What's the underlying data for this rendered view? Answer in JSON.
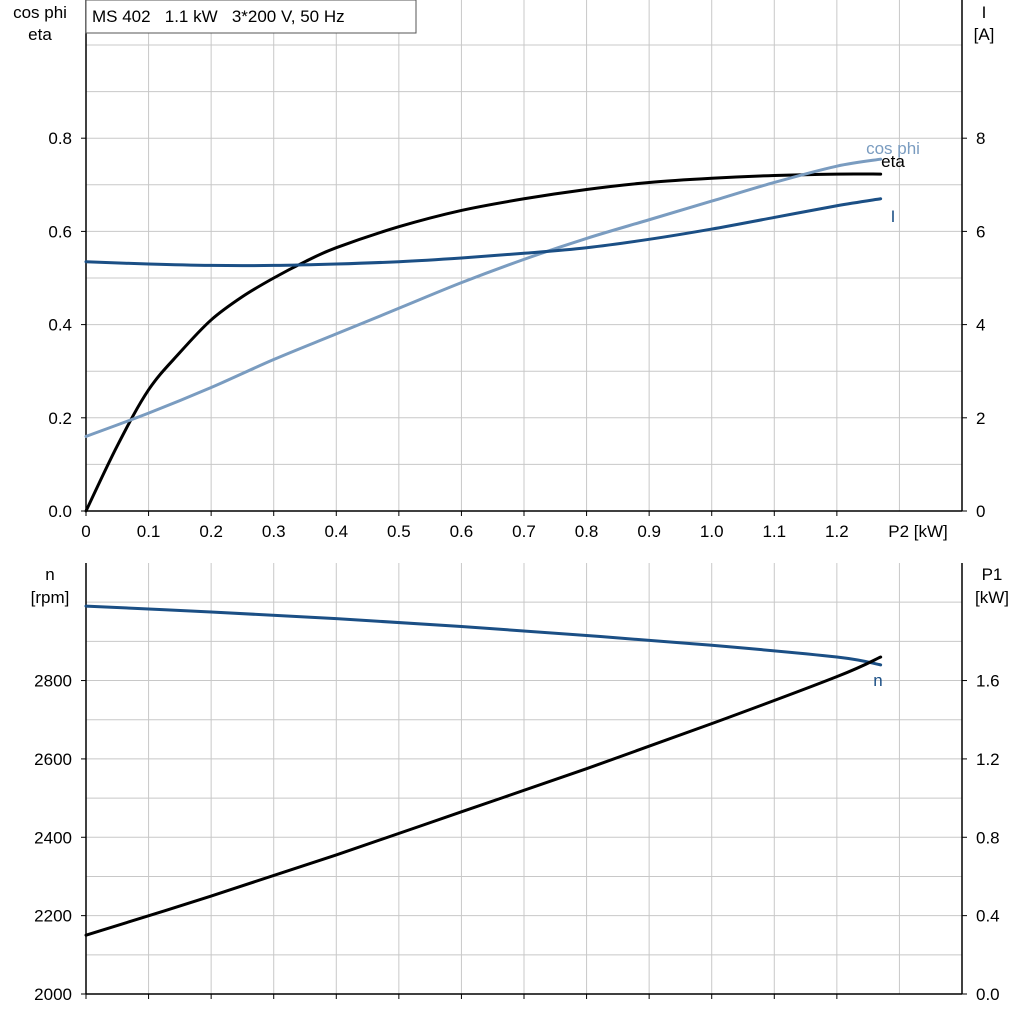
{
  "title": "MS 402   1.1 kW   3*200 V, 50 Hz",
  "colors": {
    "black": "#000000",
    "dark_blue": "#1b4f85",
    "light_blue": "#7a9cc0",
    "grid": "#c8c8c8"
  },
  "chart_data": [
    {
      "type": "line",
      "x_ticks": [
        "0",
        "0.1",
        "0.2",
        "0.3",
        "0.4",
        "0.5",
        "0.6",
        "0.7",
        "0.8",
        "0.9",
        "1.0",
        "1.1",
        "1.2"
      ],
      "xlabel": "P2 [kW]",
      "xlim": [
        0,
        1.4
      ],
      "left_axis": {
        "label_line1": "cos phi",
        "label_line2": "eta",
        "ylim": [
          0,
          1.0
        ],
        "ticks": [
          "0.0",
          "0.2",
          "0.4",
          "0.6",
          "0.8"
        ]
      },
      "right_axis": {
        "label_line1": "I",
        "label_line2": "[A]",
        "ylim": [
          0,
          10
        ],
        "ticks": [
          "0",
          "2",
          "4",
          "6",
          "8"
        ]
      },
      "grid": true,
      "series": [
        {
          "name": "eta",
          "axis": "left",
          "color": "#000000",
          "x": [
            0,
            0.05,
            0.1,
            0.15,
            0.2,
            0.25,
            0.3,
            0.35,
            0.4,
            0.5,
            0.6,
            0.7,
            0.8,
            0.9,
            1.0,
            1.1,
            1.2,
            1.27
          ],
          "y": [
            0.0,
            0.14,
            0.26,
            0.34,
            0.41,
            0.46,
            0.5,
            0.535,
            0.565,
            0.61,
            0.645,
            0.67,
            0.69,
            0.705,
            0.714,
            0.72,
            0.723,
            0.723
          ]
        },
        {
          "name": "cos phi",
          "axis": "left",
          "color": "#7a9cc0",
          "x": [
            0,
            0.1,
            0.2,
            0.3,
            0.4,
            0.5,
            0.6,
            0.7,
            0.8,
            0.9,
            1.0,
            1.1,
            1.2,
            1.27
          ],
          "y": [
            0.16,
            0.21,
            0.265,
            0.325,
            0.38,
            0.435,
            0.49,
            0.54,
            0.585,
            0.625,
            0.665,
            0.705,
            0.74,
            0.755
          ]
        },
        {
          "name": "I",
          "axis": "right",
          "color": "#1b4f85",
          "x": [
            0,
            0.1,
            0.2,
            0.3,
            0.4,
            0.5,
            0.6,
            0.7,
            0.8,
            0.9,
            1.0,
            1.1,
            1.2,
            1.27
          ],
          "y": [
            5.35,
            5.3,
            5.27,
            5.27,
            5.3,
            5.35,
            5.43,
            5.53,
            5.65,
            5.83,
            6.05,
            6.3,
            6.55,
            6.7
          ]
        }
      ]
    },
    {
      "type": "line",
      "xlim": [
        0,
        1.4
      ],
      "left_axis": {
        "label_line1": "n",
        "label_line2": "[rpm]",
        "ylim": [
          2000,
          3100
        ],
        "ticks": [
          "2000",
          "2200",
          "2400",
          "2600",
          "2800"
        ]
      },
      "right_axis": {
        "label_line1": "P1",
        "label_line2": "[kW]",
        "ylim": [
          0,
          2.2
        ],
        "ticks": [
          "0.0",
          "0.4",
          "0.8",
          "1.2",
          "1.6"
        ]
      },
      "grid": true,
      "series": [
        {
          "name": "n",
          "axis": "left",
          "color": "#1b4f85",
          "x": [
            0,
            0.2,
            0.4,
            0.6,
            0.8,
            1.0,
            1.2,
            1.27
          ],
          "y": [
            2990,
            2975,
            2958,
            2938,
            2915,
            2890,
            2860,
            2840
          ]
        },
        {
          "axis": "right",
          "color": "#000000",
          "x": [
            0,
            0.2,
            0.4,
            0.6,
            0.8,
            1.0,
            1.2,
            1.27
          ],
          "y": [
            0.3,
            0.5,
            0.71,
            0.93,
            1.15,
            1.38,
            1.62,
            1.72
          ]
        }
      ]
    }
  ]
}
